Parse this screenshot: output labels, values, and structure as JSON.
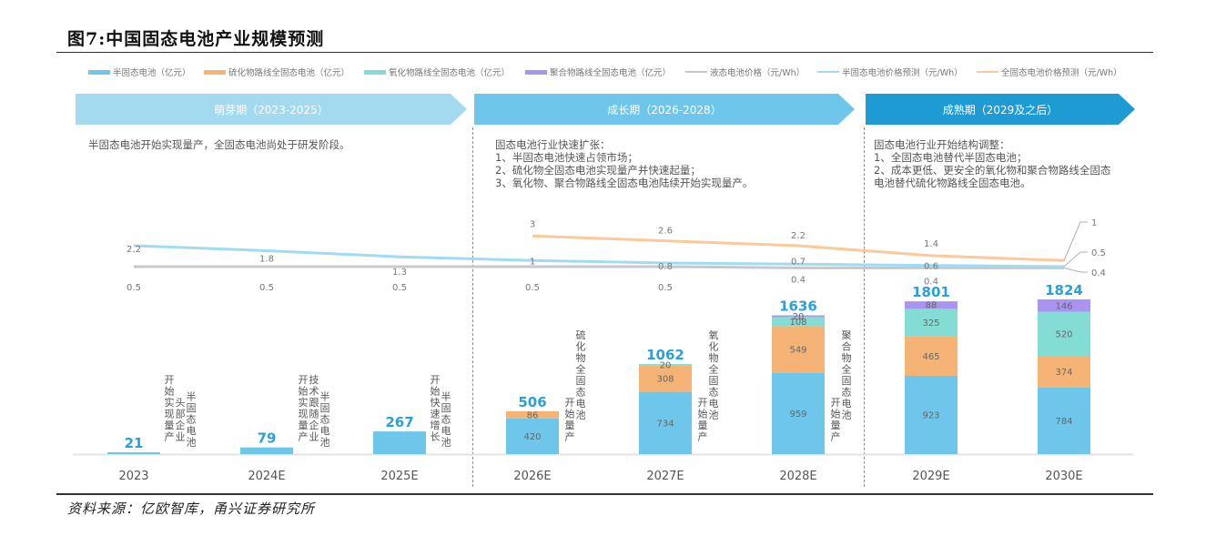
{
  "title": "图7:中国固态电池产业规模预测",
  "source": "资料来源：亿欧智库，甬兴证券研究所",
  "colors": {
    "semi_solid": "#6ec6ea",
    "sulfide": "#f5b375",
    "oxide": "#84ddd4",
    "polymer": "#a994f0",
    "liquid_price": "#c5c9cf",
    "semi_price": "#9fdcf3",
    "full_price": "#fcc99a",
    "total_label": "#2aa0d8",
    "phase1": "#a3daf0",
    "phase2": "#6ec6ea",
    "phase3": "#1f9bd3"
  },
  "legend": [
    {
      "label": "半固态电池（亿元）",
      "kind": "bar",
      "color_key": "semi_solid"
    },
    {
      "label": "硫化物路线全固态电池（亿元）",
      "kind": "bar",
      "color_key": "sulfide"
    },
    {
      "label": "氧化物路线全固态电池（亿元）",
      "kind": "bar",
      "color_key": "oxide"
    },
    {
      "label": "聚合物路线全固态电池（亿元）",
      "kind": "bar",
      "color_key": "polymer"
    },
    {
      "label": "液态电池价格（元/Wh）",
      "kind": "line",
      "color_key": "liquid_price"
    },
    {
      "label": "半固态电池价格预测（元/Wh）",
      "kind": "line",
      "color_key": "semi_price"
    },
    {
      "label": "全固态电池价格预测（元/Wh）",
      "kind": "line",
      "color_key": "full_price"
    }
  ],
  "phases": [
    {
      "label": "萌芽期（2023-2025）",
      "text": "半固态电池开始实现量产，全固态电池尚处于研发阶段。"
    },
    {
      "label": "成长期（2026-2028）",
      "text": "固态电池行业快速扩张：\n1、半固态电池快速占领市场；\n2、硫化物全固态电池实现量产并快速起量；\n3、氧化物、聚合物路线全固态电池陆续开始实现量产。"
    },
    {
      "label": "成熟期（2029及之后）",
      "text": "固态电池行业开始结构调整：\n1、全固态电池替代半固态电池；\n2、成本更低、更安全的氧化物和聚合物路线全固态\n电池替代硫化物路线全固态电池。"
    }
  ],
  "annotations": [
    {
      "after": "2023",
      "columns": [
        "半固态电池",
        "头部企业",
        "开始实现量产"
      ]
    },
    {
      "after": "2024E",
      "columns": [
        "半固态电池",
        "技术跟随企业",
        "开始实现量产"
      ]
    },
    {
      "after": "2025E",
      "columns": [
        "半固态电池",
        "开始快速增长"
      ]
    },
    {
      "after": "2026E",
      "columns": [
        "硫化物全固态电池",
        "开始量产"
      ]
    },
    {
      "after": "2027E",
      "columns": [
        "氧化物全固态电池",
        "开始量产"
      ]
    },
    {
      "after": "2028E",
      "columns": [
        "聚合物全固态电池",
        "开始量产"
      ]
    }
  ],
  "chart_data": {
    "type": "bar",
    "stacked": true,
    "title": "中国固态电池产业规模预测",
    "xlabel": "",
    "ylabel": "",
    "categories": [
      "2023",
      "2024E",
      "2025E",
      "2026E",
      "2027E",
      "2028E",
      "2029E",
      "2030E"
    ],
    "totals": [
      21,
      79,
      267,
      506,
      1062,
      1636,
      1801,
      1824
    ],
    "series": [
      {
        "name": "半固态电池（亿元）",
        "color_key": "semi_solid",
        "values": [
          21,
          79,
          267,
          420,
          734,
          959,
          923,
          784
        ]
      },
      {
        "name": "硫化物路线全固态电池（亿元）",
        "color_key": "sulfide",
        "values": [
          0,
          0,
          0,
          86,
          308,
          549,
          465,
          374
        ]
      },
      {
        "name": "氧化物路线全固态电池（亿元）",
        "color_key": "oxide",
        "values": [
          0,
          0,
          0,
          0,
          20,
          108,
          325,
          520
        ]
      },
      {
        "name": "聚合物路线全固态电池（亿元）",
        "color_key": "polymer",
        "values": [
          0,
          0,
          0,
          0,
          0,
          20,
          88,
          146
        ]
      }
    ],
    "bar_labels_shown": {
      "semi_solid": [
        false,
        false,
        false,
        true,
        true,
        true,
        true,
        true
      ],
      "sulfide": [
        false,
        false,
        false,
        true,
        true,
        true,
        true,
        true
      ],
      "oxide": [
        false,
        false,
        false,
        false,
        true,
        true,
        true,
        true
      ],
      "polymer": [
        false,
        false,
        false,
        false,
        false,
        true,
        true,
        true
      ]
    },
    "lines": [
      {
        "name": "液态电池价格（元/Wh）",
        "color_key": "liquid_price",
        "values": [
          0.5,
          0.5,
          0.5,
          0.5,
          0.5,
          0.4,
          0.4,
          0.4
        ],
        "end_label": "0.4"
      },
      {
        "name": "半固态电池价格预测（元/Wh）",
        "color_key": "semi_price",
        "values": [
          2.2,
          1.8,
          1.3,
          1,
          0.8,
          0.7,
          0.6,
          0.5
        ],
        "end_label": "0.5"
      },
      {
        "name": "全固态电池价格预测（元/Wh）",
        "color_key": "full_price",
        "values": [
          null,
          null,
          null,
          3,
          2.6,
          2.2,
          1.4,
          1
        ],
        "end_label": "1"
      }
    ],
    "legend_position": "top",
    "grid": false
  }
}
